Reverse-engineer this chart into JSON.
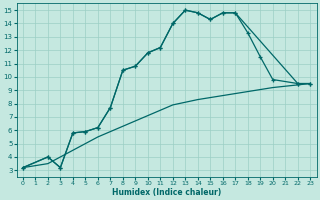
{
  "xlabel": "Humidex (Indice chaleur)",
  "xlim": [
    -0.5,
    23.5
  ],
  "ylim": [
    2.5,
    15.5
  ],
  "xticks": [
    0,
    1,
    2,
    3,
    4,
    5,
    6,
    7,
    8,
    9,
    10,
    11,
    12,
    13,
    14,
    15,
    16,
    17,
    18,
    19,
    20,
    21,
    22,
    23
  ],
  "yticks": [
    3,
    4,
    5,
    6,
    7,
    8,
    9,
    10,
    11,
    12,
    13,
    14,
    15
  ],
  "bg_color": "#c5e8e0",
  "grid_color": "#9ccfc5",
  "line_color": "#006868",
  "line1_x": [
    0,
    2,
    3,
    4,
    5,
    6,
    7,
    8,
    9,
    10,
    11,
    12,
    13,
    14,
    15,
    16,
    17,
    22,
    23
  ],
  "line1_y": [
    3.2,
    4.0,
    3.2,
    5.8,
    5.9,
    6.2,
    7.7,
    10.5,
    10.8,
    11.8,
    12.2,
    14.0,
    15.0,
    14.8,
    14.3,
    14.8,
    14.8,
    9.5,
    9.5
  ],
  "line2_x": [
    0,
    2,
    3,
    4,
    5,
    6,
    7,
    8,
    9,
    10,
    11,
    12,
    13,
    14,
    15,
    16,
    17,
    18,
    19,
    20,
    22,
    23
  ],
  "line2_y": [
    3.2,
    4.0,
    3.2,
    5.8,
    5.9,
    6.2,
    7.7,
    10.5,
    10.8,
    11.8,
    12.2,
    14.0,
    15.0,
    14.8,
    14.3,
    14.8,
    14.8,
    13.3,
    11.5,
    9.8,
    9.5,
    9.5
  ],
  "line3_x": [
    0,
    2,
    4,
    6,
    8,
    10,
    12,
    14,
    16,
    18,
    20,
    22,
    23
  ],
  "line3_y": [
    3.2,
    3.5,
    4.5,
    5.5,
    6.3,
    7.1,
    7.9,
    8.3,
    8.6,
    8.9,
    9.2,
    9.4,
    9.5
  ]
}
